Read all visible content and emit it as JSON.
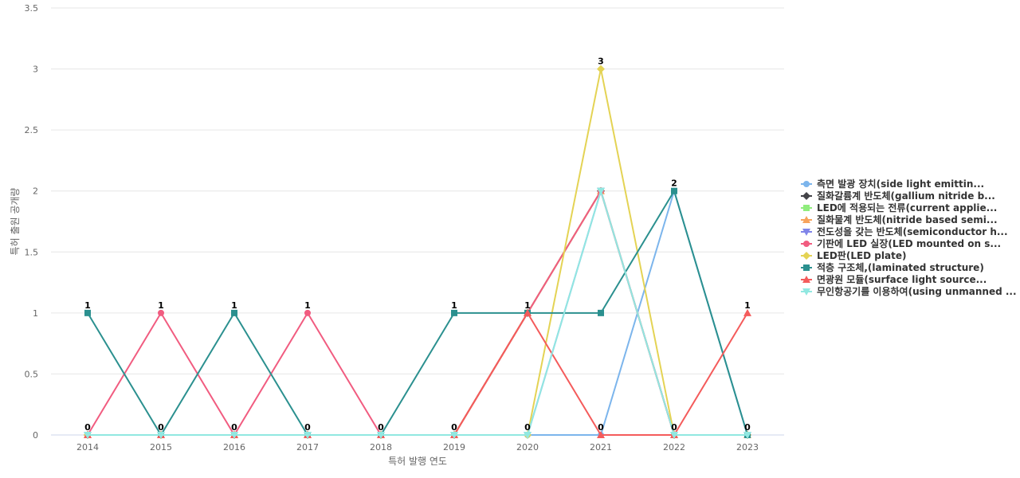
{
  "chart_data": {
    "type": "line",
    "xlabel": "특허 발행 연도",
    "ylabel": "특허 출원 공개량",
    "x": [
      "2014",
      "2015",
      "2016",
      "2017",
      "2018",
      "2019",
      "2020",
      "2021",
      "2022",
      "2023"
    ],
    "ylim": [
      0,
      3.5
    ],
    "yticks": [
      "0",
      "0.5",
      "1",
      "1.5",
      "2",
      "2.5",
      "3",
      "3.5"
    ],
    "grid": true,
    "legend_position": "right",
    "series": [
      {
        "name": "측면 발광 장치(side light emittin...",
        "color": "#7cb5ec",
        "marker": "circle",
        "values": [
          0,
          0,
          0,
          0,
          0,
          0,
          0,
          0,
          2,
          0
        ]
      },
      {
        "name": "질화갈륨계 반도체(gallium nitride b...",
        "color": "#434348",
        "marker": "diamond",
        "values": [
          0,
          0,
          0,
          0,
          0,
          0,
          1,
          2,
          0,
          0
        ]
      },
      {
        "name": "LED에 적용되는 전류(current applie...",
        "color": "#90ed7d",
        "marker": "square",
        "values": [
          0,
          0,
          0,
          0,
          0,
          0,
          1,
          2,
          0,
          0
        ]
      },
      {
        "name": "질화물계 반도체(nitride based semi...",
        "color": "#f7a35c",
        "marker": "triangle",
        "values": [
          0,
          0,
          0,
          0,
          0,
          0,
          1,
          2,
          0,
          0
        ]
      },
      {
        "name": "전도성을 갖는 반도체(semiconductor h...",
        "color": "#8085e9",
        "marker": "triangle-down",
        "values": [
          0,
          0,
          0,
          0,
          0,
          0,
          0,
          2,
          0,
          0
        ]
      },
      {
        "name": "기판에 LED 실장(LED mounted on s...",
        "color": "#f15c80",
        "marker": "circle",
        "values": [
          0,
          1,
          0,
          1,
          0,
          0,
          1,
          2,
          0,
          0
        ]
      },
      {
        "name": "LED판(LED plate)",
        "color": "#e4d354",
        "marker": "diamond",
        "values": [
          0,
          0,
          0,
          0,
          0,
          0,
          0,
          3,
          0,
          0
        ]
      },
      {
        "name": "적층 구조체,(laminated structure)",
        "color": "#2b908f",
        "marker": "square",
        "values": [
          1,
          0,
          1,
          0,
          0,
          1,
          1,
          1,
          2,
          0
        ]
      },
      {
        "name": "면광원 모듈(surface light source...",
        "color": "#f45b5b",
        "marker": "triangle",
        "values": [
          0,
          0,
          0,
          0,
          0,
          0,
          1,
          0,
          0,
          1
        ]
      },
      {
        "name": "무인항공기를 이용하여(using unmanned ...",
        "color": "#91e8e1",
        "marker": "triangle-down",
        "values": [
          0,
          0,
          0,
          0,
          0,
          0,
          0,
          2,
          0,
          0
        ]
      }
    ],
    "data_labels": [
      "1",
      "1",
      "1",
      "1",
      "0",
      "1",
      "1",
      "3",
      "2",
      "1"
    ],
    "data_labels_low": [
      "0",
      "0",
      "0",
      "0",
      "",
      "0",
      "0",
      "0",
      "0",
      "0"
    ]
  }
}
